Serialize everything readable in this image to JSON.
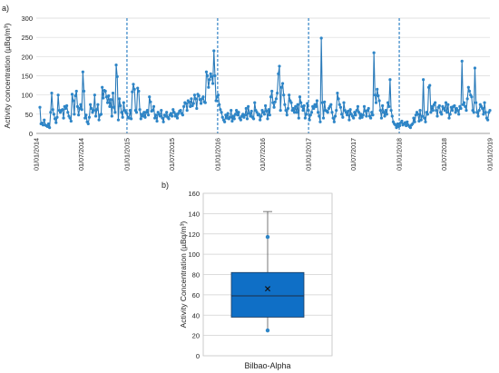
{
  "panel_a_label": "a)",
  "panel_b_label": "b)",
  "chart_data": [
    {
      "type": "line",
      "ylabel": "Activity concentration (µBq/m³)",
      "xlabel": "",
      "ylim": [
        0,
        300
      ],
      "yticks": [
        0,
        50,
        100,
        150,
        200,
        250,
        300
      ],
      "xlim": [
        "2014-01-01",
        "2019-01-01"
      ],
      "xticks": [
        "01/01/2014",
        "01/07/2014",
        "01/01/2015",
        "01/07/2015",
        "01/01/2016",
        "01/07/2016",
        "01/01/2017",
        "01/07/2017",
        "01/01/2018",
        "01/07/2018",
        "01/01/2019"
      ],
      "year_markers": [
        "2015-01-01",
        "2016-01-01",
        "2017-01-01",
        "2018-01-01"
      ],
      "grid": "horizontal",
      "color": "#2a7ab9",
      "marker_color": "#2e86c8",
      "series": [
        {
          "values": [
            68,
            25,
            27,
            22,
            35,
            22,
            20,
            18,
            25,
            15,
            55,
            105,
            62,
            50,
            38,
            28,
            42,
            100,
            60,
            55,
            60,
            62,
            40,
            70,
            65,
            72,
            55,
            45,
            40,
            32,
            102,
            85,
            50,
            98,
            110,
            70,
            48,
            65,
            75,
            62,
            160,
            110,
            40,
            48,
            30,
            25,
            42,
            75,
            65,
            55,
            60,
            100,
            45,
            62,
            75,
            35,
            48,
            50,
            120,
            92,
            112,
            110,
            95,
            80,
            98,
            70,
            88,
            45,
            105,
            68,
            55,
            178,
            148,
            35,
            90,
            72,
            55,
            42,
            80,
            60,
            55,
            52,
            42,
            40,
            60,
            38,
            108,
            128,
            115,
            60,
            55,
            118,
            110,
            62,
            38,
            50,
            45,
            55,
            42,
            55,
            60,
            48,
            95,
            82,
            58,
            60,
            70,
            40,
            48,
            32,
            55,
            50,
            45,
            60,
            40,
            30,
            48,
            45,
            55,
            42,
            38,
            48,
            52,
            45,
            62,
            55,
            45,
            50,
            40,
            52,
            58,
            60,
            52,
            48,
            70,
            80,
            78,
            60,
            85,
            82,
            70,
            90,
            72,
            78,
            100,
            90,
            65,
            102,
            98,
            88,
            78,
            90,
            95,
            82,
            80,
            160,
            150,
            120,
            140,
            155,
            148,
            130,
            215,
            150,
            85,
            95,
            100,
            75,
            62,
            55,
            42,
            35,
            30,
            48,
            40,
            52,
            38,
            42,
            60,
            32,
            45,
            38,
            50,
            60,
            48,
            55,
            40,
            35,
            45,
            50,
            42,
            48,
            65,
            38,
            70,
            52,
            45,
            58,
            42,
            38,
            80,
            60,
            55,
            48,
            50,
            35,
            45,
            60,
            55,
            50,
            72,
            58,
            38,
            62,
            48,
            95,
            110,
            80,
            68,
            82,
            90,
            105,
            155,
            175,
            60,
            120,
            130,
            100,
            75,
            60,
            48,
            65,
            100,
            85,
            80,
            60,
            65,
            55,
            70,
            55,
            75,
            40,
            95,
            80,
            70,
            60,
            72,
            40,
            50,
            78,
            60,
            35,
            48,
            55,
            70,
            65,
            75,
            70,
            85,
            55,
            45,
            30,
            248,
            80,
            40,
            82,
            60,
            58,
            55,
            65,
            70,
            75,
            55,
            40,
            30,
            45,
            60,
            105,
            90,
            75,
            68,
            50,
            42,
            80,
            60,
            55,
            48,
            58,
            35,
            62,
            50,
            45,
            40,
            55,
            48,
            60,
            70,
            55,
            40,
            50,
            42,
            48,
            70,
            58,
            45,
            60,
            65,
            45,
            40,
            55,
            48,
            210,
            100,
            80,
            115,
            98,
            85,
            60,
            40,
            72,
            55,
            45,
            60,
            50,
            80,
            70,
            140,
            60,
            45,
            30,
            25,
            22,
            15,
            25,
            18,
            20,
            28,
            32,
            22,
            25,
            28,
            20,
            30,
            22,
            18,
            15,
            22,
            25,
            40,
            30,
            48,
            55,
            50,
            32,
            60,
            35,
            45,
            140,
            40,
            30,
            55,
            50,
            120,
            125,
            55,
            70,
            60,
            75,
            80,
            60,
            45,
            68,
            72,
            55,
            50,
            70,
            65,
            60,
            80,
            55,
            75,
            40,
            50,
            68,
            60,
            70,
            72,
            55,
            65,
            60,
            50,
            70,
            65,
            188,
            75,
            80,
            70,
            60,
            90,
            120,
            110,
            100,
            95,
            60,
            55,
            170,
            80,
            55,
            45,
            60,
            75,
            70,
            65,
            50,
            80,
            55,
            40,
            35,
            55,
            60
          ]
        }
      ]
    },
    {
      "type": "box",
      "categories": [
        "Bilbao-Alpha"
      ],
      "ylabel": "Activity Concentration (µBq/m³)",
      "ylim": [
        0,
        160
      ],
      "yticks": [
        0,
        20,
        40,
        60,
        80,
        100,
        120,
        140,
        160
      ],
      "grid": "horizontal",
      "color": "#0f6fc6",
      "q1": 38,
      "median": 59,
      "q3": 82,
      "whisker_low": 23,
      "whisker_high": 142,
      "mean": 66,
      "outliers": [
        117,
        25
      ]
    }
  ]
}
